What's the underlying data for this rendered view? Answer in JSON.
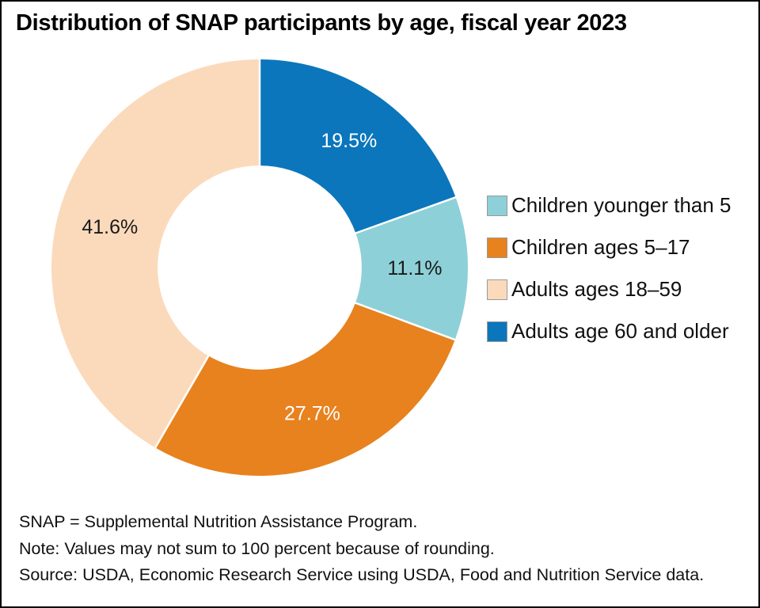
{
  "title": "Distribution of SNAP participants by age, fiscal year 2023",
  "chart_data": {
    "type": "pie",
    "donut": true,
    "title": "Distribution of SNAP participants by age, fiscal year 2023",
    "labels": [
      "Children younger than 5",
      "Children ages 5–17",
      "Adults ages 18–59",
      "Adults age 60 and older"
    ],
    "values": [
      11.1,
      27.7,
      41.6,
      19.5
    ],
    "value_labels": [
      "11.1%",
      "27.7%",
      "41.6%",
      "19.5%"
    ],
    "colors": [
      "#8ed0d7",
      "#e8821e",
      "#fbdabb",
      "#0b76bc"
    ],
    "value_label_colors": [
      "#1a1a1a",
      "#ffffff",
      "#1a1a1a",
      "#ffffff"
    ],
    "draw_order_clockwise_from_top": [
      3,
      0,
      1,
      2
    ],
    "start_angle_deg": 0,
    "direction": "clockwise",
    "inner_radius_ratio": 0.49,
    "label_radius_ratio": 0.745,
    "separator_color": "#ffffff",
    "legend_position": "right"
  },
  "footnotes": {
    "lines": [
      "SNAP = Supplemental Nutrition Assistance Program.",
      "Note: Values may not sum to 100 percent because of rounding.",
      "Source: USDA, Economic Research Service using USDA, Food and Nutrition Service data."
    ]
  }
}
